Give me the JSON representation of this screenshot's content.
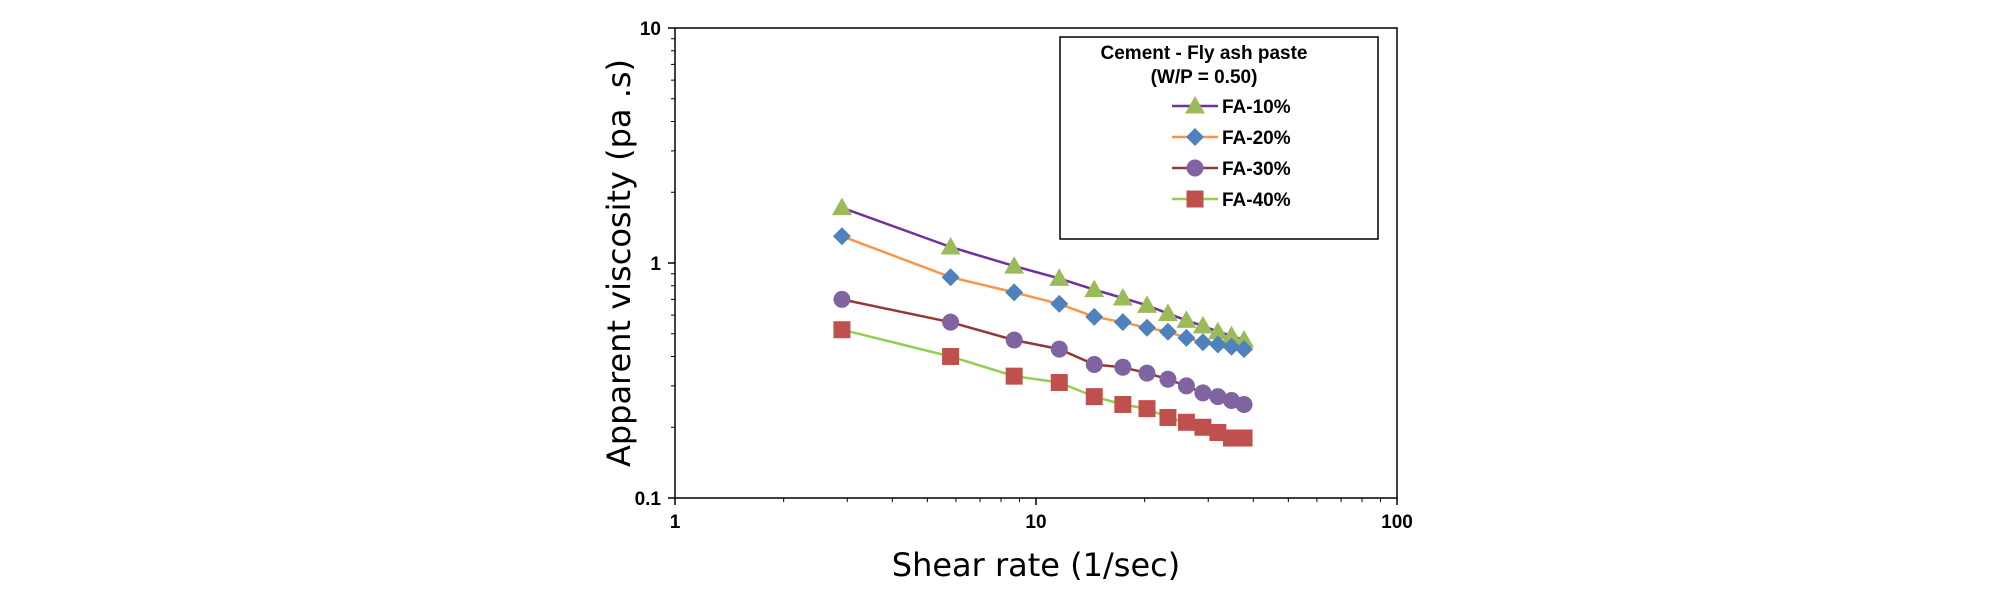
{
  "chart_data": {
    "type": "line",
    "xscale": "log",
    "yscale": "log",
    "xlim": [
      1,
      100
    ],
    "ylim": [
      0.1,
      10
    ],
    "xlabel": "Shear rate (1/sec)",
    "ylabel": "Apparent   viscosity (pa .s)",
    "x_ticks": [
      "1",
      "10",
      "100"
    ],
    "y_ticks": [
      "0.1",
      "1",
      "10"
    ],
    "grid": false,
    "legend": {
      "position": "top-right",
      "title_line1": "Cement - Fly ash paste",
      "title_line2": "(W/P = 0.50)"
    },
    "x": [
      2.9,
      5.8,
      8.7,
      11.6,
      14.5,
      17.4,
      20.3,
      23.2,
      26.1,
      29.0,
      31.9,
      34.8,
      37.7
    ],
    "series": [
      {
        "name": "FA-10%",
        "marker": "triangle",
        "line_color": "#7030a0",
        "marker_color": "#9bbb59",
        "values": [
          1.72,
          1.17,
          0.97,
          0.86,
          0.77,
          0.71,
          0.66,
          0.61,
          0.57,
          0.54,
          0.51,
          0.49,
          0.47
        ]
      },
      {
        "name": "FA-20%",
        "marker": "diamond",
        "line_color": "#f79646",
        "marker_color": "#4f81bd",
        "values": [
          1.3,
          0.87,
          0.75,
          0.67,
          0.59,
          0.56,
          0.53,
          0.51,
          0.48,
          0.46,
          0.45,
          0.44,
          0.43
        ]
      },
      {
        "name": "FA-30%",
        "marker": "circle",
        "line_color": "#953735",
        "marker_color": "#8064a2",
        "values": [
          0.7,
          0.56,
          0.47,
          0.43,
          0.37,
          0.36,
          0.34,
          0.32,
          0.3,
          0.28,
          0.27,
          0.26,
          0.25
        ]
      },
      {
        "name": "FA-40%",
        "marker": "square",
        "line_color": "#92d050",
        "marker_color": "#c0504d",
        "values": [
          0.52,
          0.4,
          0.33,
          0.31,
          0.27,
          0.25,
          0.24,
          0.22,
          0.21,
          0.2,
          0.19,
          0.18,
          0.18
        ]
      }
    ]
  }
}
